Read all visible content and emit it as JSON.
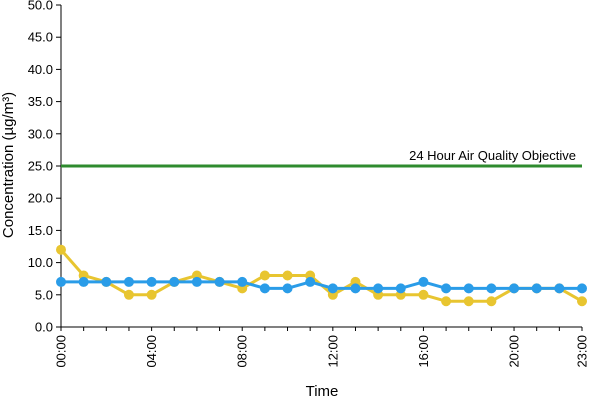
{
  "chart_data": {
    "type": "line",
    "title": "",
    "xlabel": "Time",
    "ylabel": "Concentration (µg/m³)",
    "ylim": [
      0,
      50
    ],
    "y_ticks": [
      "0.0",
      "5.0",
      "10.0",
      "15.0",
      "20.0",
      "25.0",
      "30.0",
      "35.0",
      "40.0",
      "45.0",
      "50.0"
    ],
    "x": [
      "00:00",
      "01:00",
      "02:00",
      "03:00",
      "04:00",
      "05:00",
      "06:00",
      "07:00",
      "08:00",
      "09:00",
      "10:00",
      "11:00",
      "12:00",
      "13:00",
      "14:00",
      "15:00",
      "16:00",
      "17:00",
      "18:00",
      "19:00",
      "20:00",
      "21:00",
      "22:00",
      "23:00"
    ],
    "x_tick_labels": [
      {
        "index": 0,
        "label": "00:00"
      },
      {
        "index": 4,
        "label": "04:00"
      },
      {
        "index": 8,
        "label": "08:00"
      },
      {
        "index": 12,
        "label": "12:00"
      },
      {
        "index": 16,
        "label": "16:00"
      },
      {
        "index": 20,
        "label": "20:00"
      },
      {
        "index": 23,
        "label": "23:00"
      }
    ],
    "grid": false,
    "series": [
      {
        "color": "#e8c530",
        "values": [
          12,
          8,
          7,
          5,
          5,
          7,
          8,
          7,
          6,
          8,
          8,
          8,
          5,
          7,
          5,
          5,
          5,
          4,
          4,
          4,
          6,
          6,
          6,
          4
        ]
      },
      {
        "color": "#2a9ce8",
        "values": [
          7,
          7,
          7,
          7,
          7,
          7,
          7,
          7,
          7,
          6,
          6,
          7,
          6,
          6,
          6,
          6,
          7,
          6,
          6,
          6,
          6,
          6,
          6,
          6
        ]
      }
    ],
    "reference_line": {
      "value": 25,
      "label": "24 Hour Air Quality Objective",
      "color": "#2e8b2e"
    }
  }
}
